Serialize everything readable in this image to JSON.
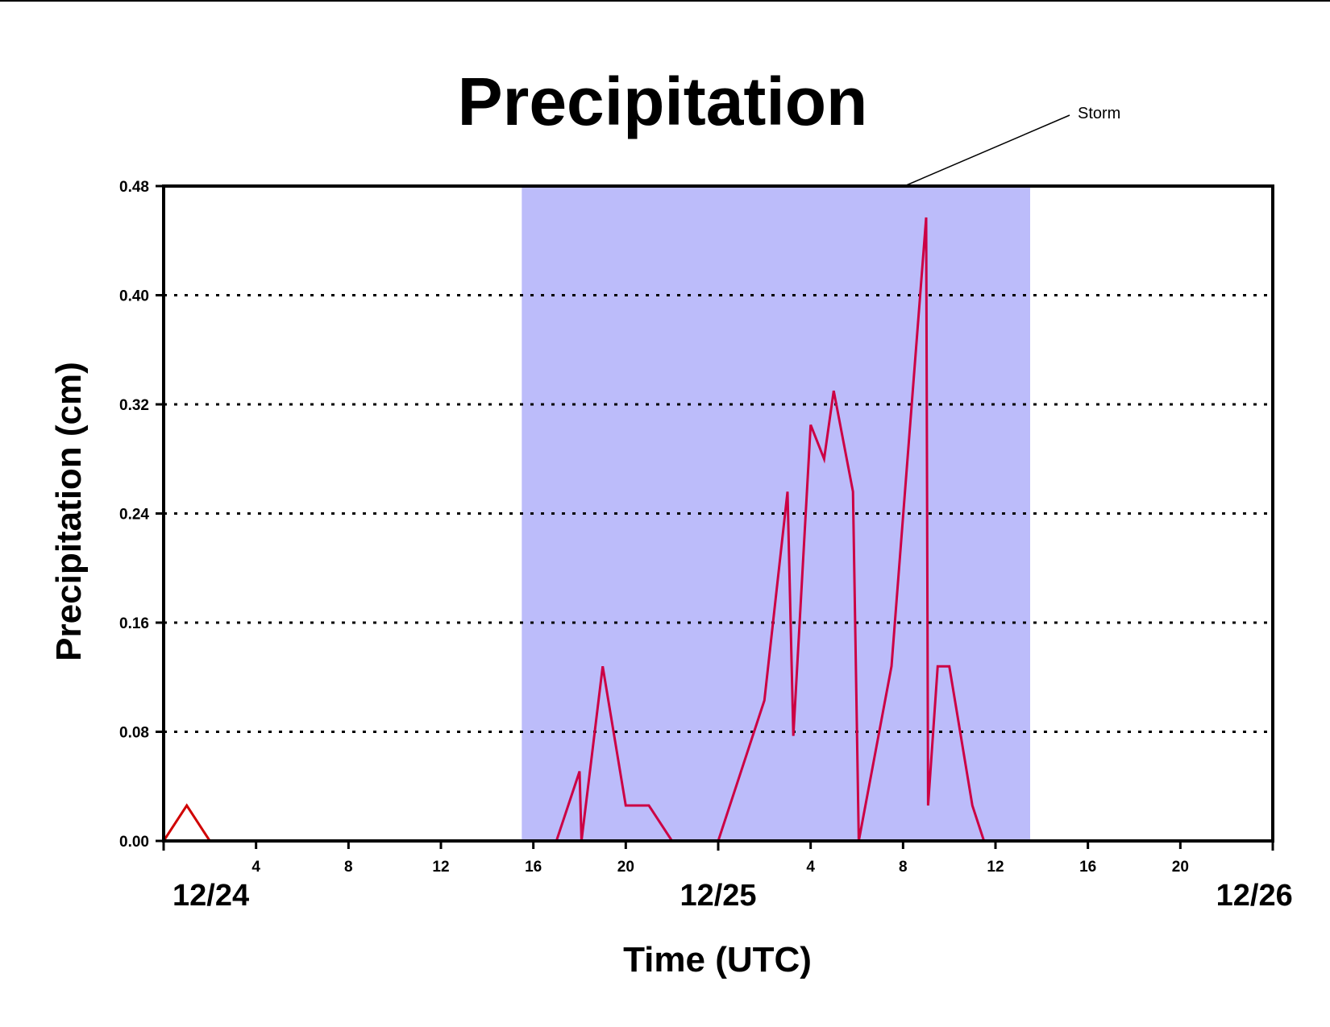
{
  "chart_data": {
    "type": "line",
    "title": "Precipitation",
    "xlabel": "Time (UTC)",
    "ylabel": "Precipitation (cm)",
    "xlim": [
      "12/24 00:00",
      "12/26 00:00"
    ],
    "ylim": [
      0,
      0.48
    ],
    "grid": "horizontal dotted",
    "y_ticks": [
      "0.00",
      "0.08",
      "0.16",
      "0.24",
      "0.32",
      "0.40",
      "0.48"
    ],
    "x_ticks": [
      {
        "time": "12/24 04:00",
        "label": "4"
      },
      {
        "time": "12/24 08:00",
        "label": "8"
      },
      {
        "time": "12/24 12:00",
        "label": "12"
      },
      {
        "time": "12/24 16:00",
        "label": "16"
      },
      {
        "time": "12/24 20:00",
        "label": "20"
      },
      {
        "time": "12/25 04:00",
        "label": "4"
      },
      {
        "time": "12/25 08:00",
        "label": "8"
      },
      {
        "time": "12/25 12:00",
        "label": "12"
      },
      {
        "time": "12/25 16:00",
        "label": "16"
      },
      {
        "time": "12/25 20:00",
        "label": "20"
      }
    ],
    "date_labels": [
      {
        "time": "12/24 00:00",
        "label": "12/24"
      },
      {
        "time": "12/25 00:00",
        "label": "12/25"
      },
      {
        "time": "12/26 00:00",
        "label": "12/26"
      }
    ],
    "storm_period": {
      "label": "Storm",
      "start": "12/24 15:30",
      "end": "12/25 13:30",
      "color": "#bcbcfa"
    },
    "series": [
      {
        "color": "#d00000",
        "points": [
          [
            "12/24 00:00",
            0.0
          ],
          [
            "12/24 01:00",
            0.026
          ],
          [
            "12/24 02:00",
            0.0
          ],
          [
            "12/24 15:30",
            0.0
          ]
        ]
      },
      {
        "color": "#cc0044",
        "points": [
          [
            "12/24 15:30",
            0.0
          ],
          [
            "12/24 17:00",
            0.0
          ],
          [
            "12/24 18:00",
            0.051
          ],
          [
            "12/24 18:05",
            0.0
          ],
          [
            "12/24 19:00",
            0.128
          ],
          [
            "12/24 20:00",
            0.026
          ],
          [
            "12/24 21:00",
            0.026
          ],
          [
            "12/24 22:00",
            0.0
          ],
          [
            "12/25 00:00",
            0.0
          ],
          [
            "12/25 02:00",
            0.103
          ],
          [
            "12/25 03:00",
            0.256
          ],
          [
            "12/25 03:15",
            0.077
          ],
          [
            "12/25 04:00",
            0.305
          ],
          [
            "12/25 04:35",
            0.28
          ],
          [
            "12/25 05:00",
            0.33
          ],
          [
            "12/25 05:50",
            0.256
          ],
          [
            "12/25 06:05",
            0.0
          ],
          [
            "12/25 07:30",
            0.128
          ],
          [
            "12/25 09:00",
            0.457
          ],
          [
            "12/25 09:05",
            0.026
          ],
          [
            "12/25 09:30",
            0.128
          ],
          [
            "12/25 10:00",
            0.128
          ],
          [
            "12/25 11:00",
            0.026
          ],
          [
            "12/25 11:30",
            0.0
          ],
          [
            "12/25 13:30",
            0.0
          ]
        ]
      },
      {
        "color": "#8a0026",
        "points": [
          [
            "12/25 13:30",
            0.0
          ],
          [
            "12/26 00:00",
            0.0
          ]
        ]
      }
    ]
  }
}
